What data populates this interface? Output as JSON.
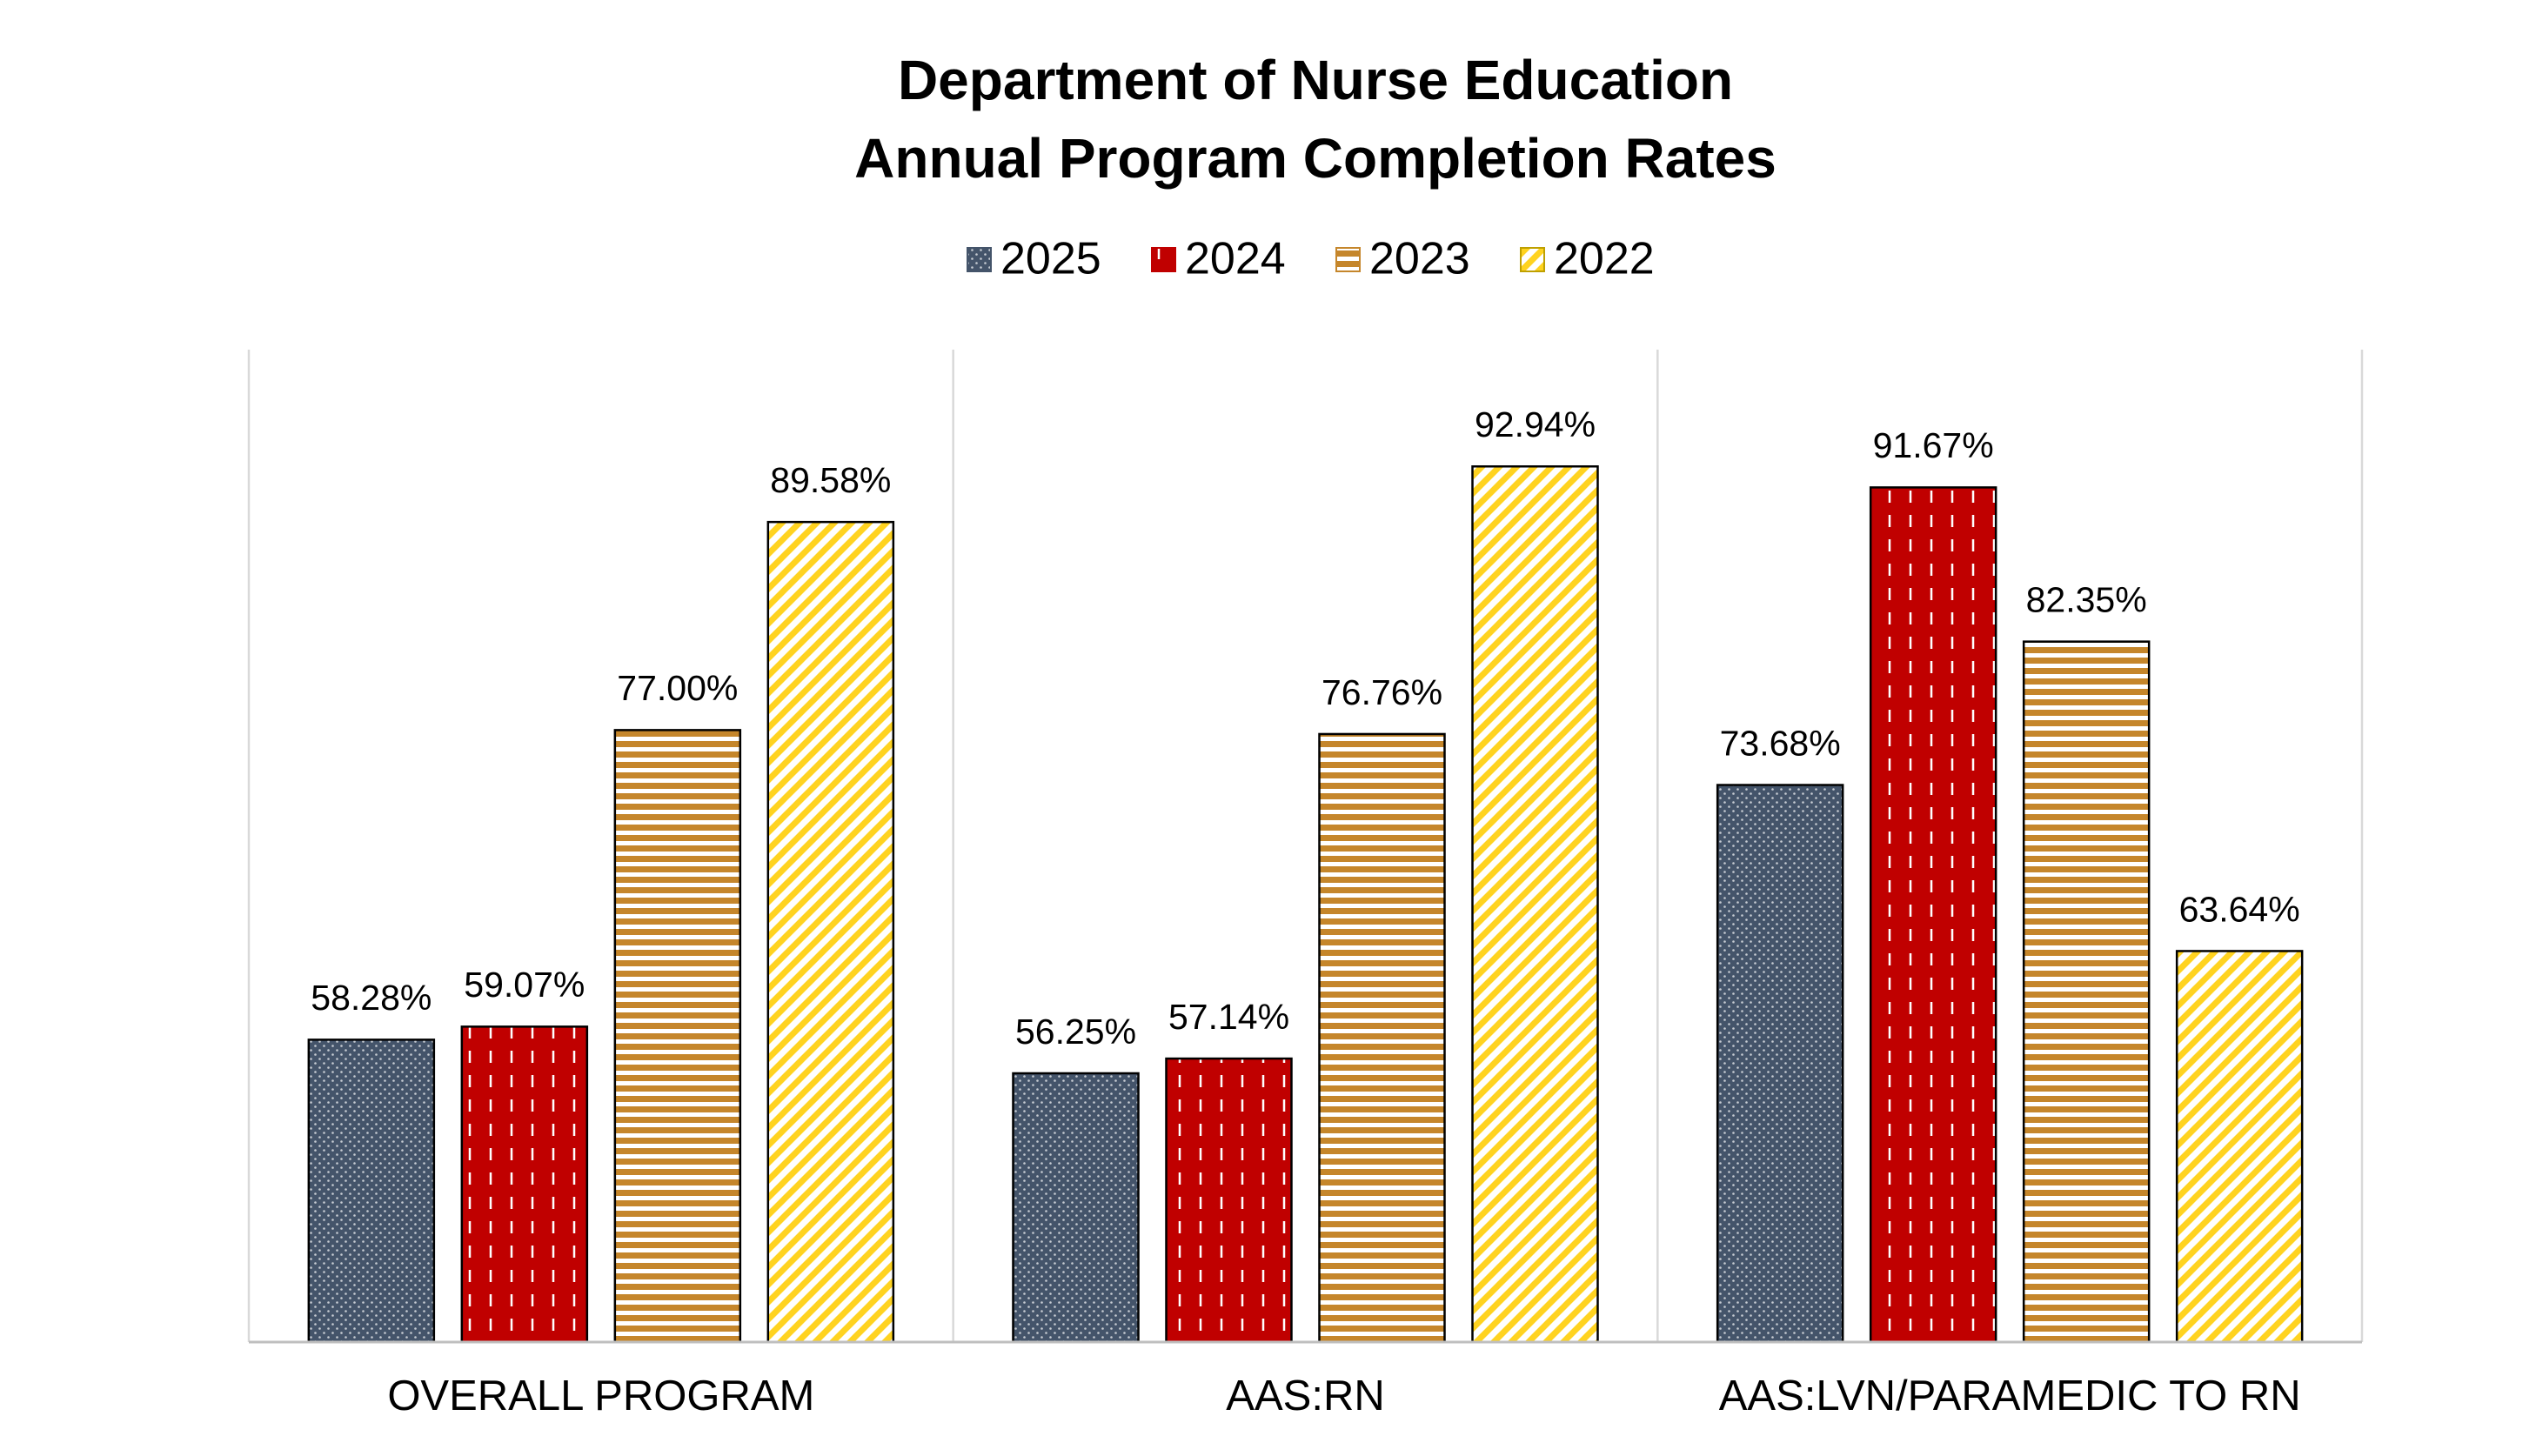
{
  "chart_data": {
    "type": "bar",
    "title": [
      "Department of Nurse Education",
      "Annual Program Completion Rates"
    ],
    "categories": [
      "OVERALL PROGRAM",
      "AAS:RN",
      "AAS:LVN/PARAMEDIC TO RN"
    ],
    "series": [
      {
        "name": "2025",
        "color": "#44546a",
        "values": [
          58.28,
          56.25,
          73.68
        ],
        "value_labels": [
          "58.28%",
          "56.25%",
          "73.68%"
        ]
      },
      {
        "name": "2024",
        "color": "#c00000",
        "values": [
          59.07,
          57.14,
          91.67
        ],
        "value_labels": [
          "59.07%",
          "57.14%",
          "91.67%"
        ]
      },
      {
        "name": "2023",
        "color": "#c5862b",
        "values": [
          77.0,
          76.76,
          82.35
        ],
        "value_labels": [
          "77.00%",
          "76.76%",
          "82.35%"
        ]
      },
      {
        "name": "2022",
        "color": "#ffd320",
        "values": [
          89.58,
          92.94,
          63.64
        ],
        "value_labels": [
          "89.58%",
          "92.94%",
          "63.64%"
        ]
      }
    ],
    "ylim": [
      40,
      100
    ],
    "legend": "top"
  }
}
